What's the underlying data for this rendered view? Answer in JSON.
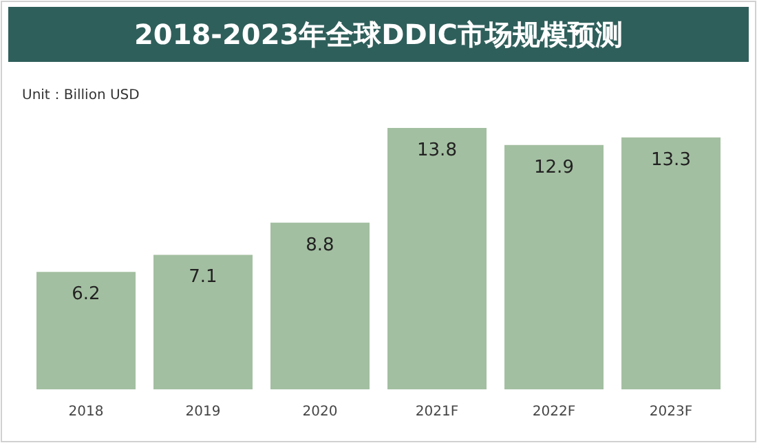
{
  "chart_data": {
    "type": "bar",
    "title": "2018-2023年全球DDIC市场规模预测",
    "annotations": [
      "Unit：Billion USD"
    ],
    "categories": [
      "2018",
      "2019",
      "2020",
      "2021F",
      "2022F",
      "2023F"
    ],
    "values": [
      6.2,
      7.1,
      8.8,
      13.8,
      12.9,
      13.3
    ],
    "color": "#a3bfa1",
    "data_labels": true
  }
}
